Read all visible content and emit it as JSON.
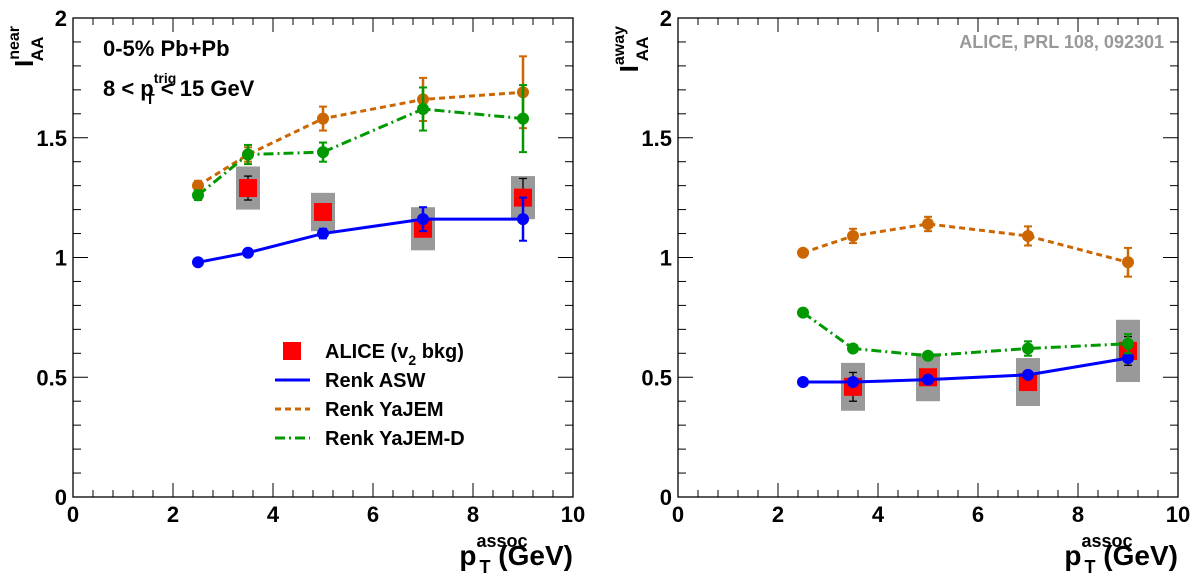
{
  "chart_data": [
    {
      "type": "scatter",
      "xlim": [
        0,
        10
      ],
      "ylim": [
        0,
        2
      ],
      "x_ticks": [
        "0",
        "2",
        "4",
        "6",
        "8",
        "10"
      ],
      "y_ticks": [
        "0",
        "0.5",
        "1",
        "1.5",
        "2"
      ],
      "ylabel": {
        "main": "I",
        "sub": "AA",
        "sup": "near"
      },
      "xlabel": {
        "main": "p",
        "sub": "T",
        "sup": "assoc",
        "tail": "(GeV)"
      },
      "annotations": [
        {
          "text": "0-5% Pb+Pb"
        },
        {
          "pre": "8 < p",
          "sub": "T",
          "sup": "trig",
          "post": " < 15 GeV"
        }
      ],
      "legend": {
        "position": "bottom-right",
        "entries": [
          {
            "pre": "ALICE (v",
            "sub": "2",
            "post": " bkg)",
            "marker": "square",
            "color": "#ff0000"
          },
          {
            "pre": "Renk ASW",
            "marker": "solid",
            "color": "#0000ff"
          },
          {
            "pre": "Renk YaJEM",
            "marker": "dashed",
            "color": "#cc6600"
          },
          {
            "pre": "Renk YaJEM-D",
            "marker": "dashdot",
            "color": "#009900"
          }
        ]
      },
      "series": [
        {
          "name": "ALICE (v2 bkg)",
          "kind": "data",
          "color": "#ff0000",
          "x": [
            3.5,
            5,
            7,
            9
          ],
          "y": [
            1.29,
            1.19,
            1.12,
            1.25
          ],
          "stat": [
            0.05,
            0.03,
            0.03,
            0.08
          ],
          "sys": [
            0.09,
            0.08,
            0.09,
            0.09
          ]
        },
        {
          "name": "Renk ASW",
          "kind": "model",
          "style": "solid",
          "color": "#0000ff",
          "x": [
            2.5,
            3.5,
            5,
            7,
            9
          ],
          "y": [
            0.98,
            1.02,
            1.1,
            1.16,
            1.16
          ],
          "err": [
            0.0,
            0.0,
            0.02,
            0.05,
            0.09
          ]
        },
        {
          "name": "Renk YaJEM",
          "kind": "model",
          "style": "dashed",
          "color": "#cc6600",
          "x": [
            2.5,
            3.5,
            5,
            7,
            9
          ],
          "y": [
            1.3,
            1.43,
            1.58,
            1.66,
            1.69
          ],
          "err": [
            0.02,
            0.03,
            0.05,
            0.09,
            0.15
          ]
        },
        {
          "name": "Renk YaJEM-D",
          "kind": "model",
          "style": "dashdot",
          "color": "#009900",
          "x": [
            2.5,
            3.5,
            5,
            7,
            9
          ],
          "y": [
            1.26,
            1.43,
            1.44,
            1.62,
            1.58
          ],
          "err": [
            0.02,
            0.04,
            0.04,
            0.09,
            0.14
          ]
        }
      ]
    },
    {
      "type": "scatter",
      "xlim": [
        0,
        10
      ],
      "ylim": [
        0,
        2
      ],
      "x_ticks": [
        "0",
        "2",
        "4",
        "6",
        "8",
        "10"
      ],
      "y_ticks": [
        "0",
        "0.5",
        "1",
        "1.5",
        "2"
      ],
      "ylabel": {
        "main": "I",
        "sub": "AA",
        "sup": "away"
      },
      "xlabel": {
        "main": "p",
        "sub": "T",
        "sup": "assoc",
        "tail": "(GeV)"
      },
      "annotations": [
        {
          "text": "ALICE, PRL 108, 092301",
          "color": "#999999"
        }
      ],
      "series": [
        {
          "name": "ALICE (v2 bkg)",
          "kind": "data",
          "color": "#ff0000",
          "x": [
            3.5,
            5,
            7,
            9
          ],
          "y": [
            0.46,
            0.5,
            0.48,
            0.61
          ],
          "stat": [
            0.06,
            0.03,
            0.03,
            0.06
          ],
          "sys": [
            0.1,
            0.1,
            0.1,
            0.13
          ]
        },
        {
          "name": "Renk ASW",
          "kind": "model",
          "style": "solid",
          "color": "#0000ff",
          "x": [
            2.5,
            3.5,
            5,
            7,
            9
          ],
          "y": [
            0.48,
            0.48,
            0.49,
            0.51,
            0.58
          ],
          "err": [
            0.0,
            0.0,
            0.0,
            0.0,
            0.0
          ]
        },
        {
          "name": "Renk YaJEM",
          "kind": "model",
          "style": "dashed",
          "color": "#cc6600",
          "x": [
            2.5,
            3.5,
            5,
            7,
            9
          ],
          "y": [
            1.02,
            1.09,
            1.14,
            1.09,
            0.98
          ],
          "err": [
            0.01,
            0.03,
            0.03,
            0.04,
            0.06
          ]
        },
        {
          "name": "Renk YaJEM-D",
          "kind": "model",
          "style": "dashdot",
          "color": "#009900",
          "x": [
            2.5,
            3.5,
            5,
            7,
            9
          ],
          "y": [
            0.77,
            0.62,
            0.59,
            0.62,
            0.64
          ],
          "err": [
            0.01,
            0.01,
            0.01,
            0.03,
            0.04
          ]
        }
      ]
    }
  ]
}
